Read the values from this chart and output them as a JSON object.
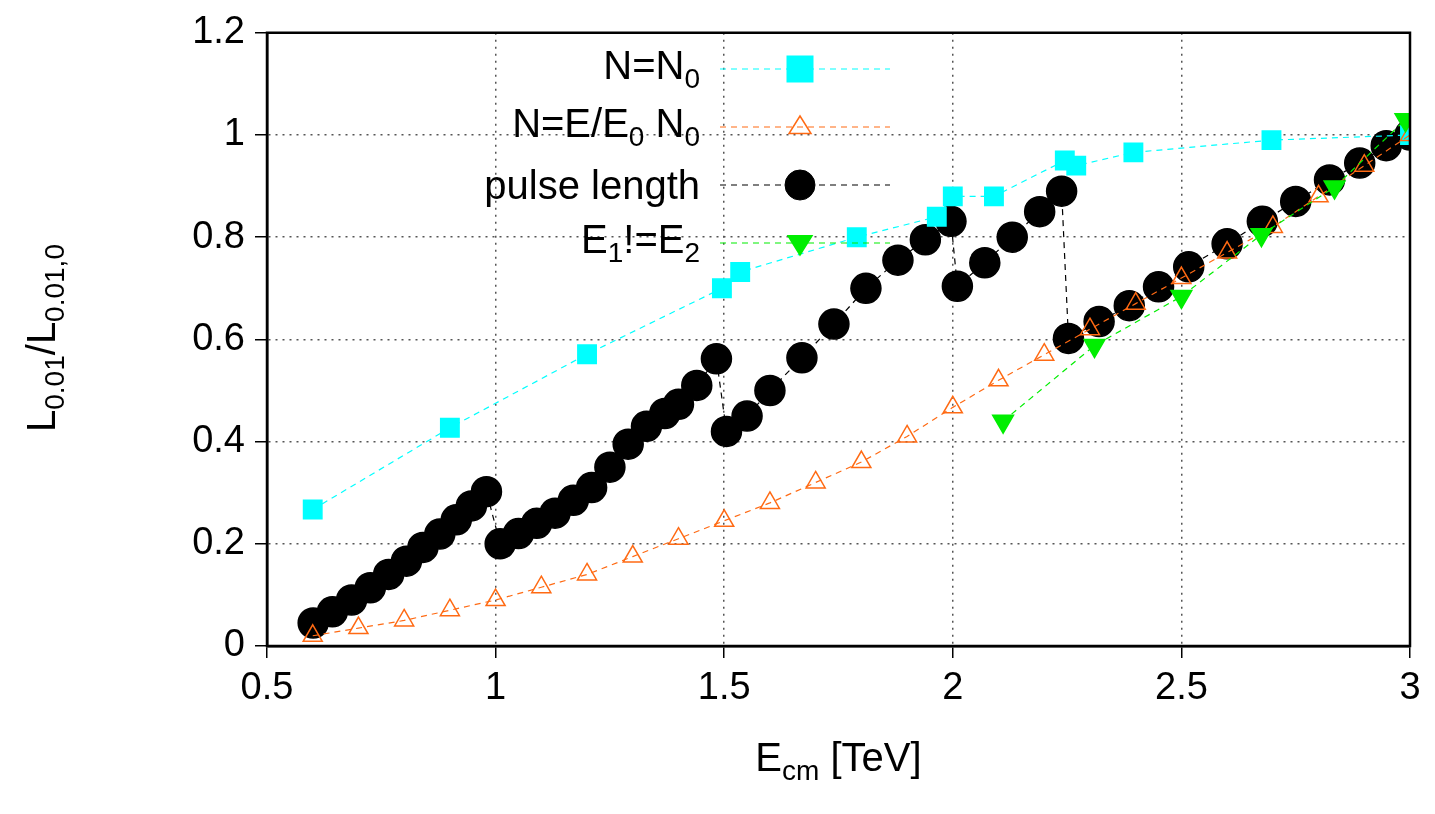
{
  "chart_data": {
    "type": "line",
    "xlabel": "E$_{cm}$ [TeV]",
    "ylabel": "L$_{0.01}$/L$_{0.01,0}$",
    "xlim": [
      0.5,
      3
    ],
    "xticks": [
      0.5,
      1,
      1.5,
      2,
      2.5,
      3
    ],
    "ylim": [
      0,
      1.2
    ],
    "yticks": [
      0,
      0.2,
      0.4,
      0.6,
      0.8,
      1,
      1.2
    ],
    "grid": true,
    "legend": "top left",
    "series": [
      {
        "name": "N=N$_{0}$",
        "color": "#00ffff",
        "marker": "square",
        "line_style": "dashed",
        "x": [
          0.6,
          0.9,
          1.2,
          1.495,
          1.535,
          1.79,
          1.965,
          2.0,
          2.09,
          2.245,
          2.27,
          2.395,
          2.697,
          3.0
        ],
        "values": [
          0.267,
          0.427,
          0.571,
          0.7,
          0.732,
          0.8,
          0.84,
          0.88,
          0.88,
          0.95,
          0.94,
          0.966,
          0.99,
          1.0
        ]
      },
      {
        "name": "N=E/E$_{0}$ N$_{0}$",
        "color": "#ff6a13",
        "marker": "triangle-open",
        "line_style": "dashed",
        "x": [
          0.6,
          0.7,
          0.8,
          0.9,
          1.0,
          1.1,
          1.2,
          1.3,
          1.4,
          1.5,
          1.6,
          1.7,
          1.8,
          1.9,
          2.0,
          2.1,
          2.2,
          2.3,
          2.4,
          2.5,
          2.6,
          2.7,
          2.8,
          2.9,
          3.0
        ],
        "values": [
          0.02,
          0.035,
          0.05,
          0.07,
          0.09,
          0.115,
          0.14,
          0.175,
          0.21,
          0.245,
          0.28,
          0.32,
          0.36,
          0.41,
          0.467,
          0.52,
          0.57,
          0.62,
          0.67,
          0.72,
          0.77,
          0.82,
          0.88,
          0.94,
          1.0
        ]
      },
      {
        "name": "pulse length",
        "color": "#000000",
        "marker": "circle",
        "line_style": "dashed",
        "x": [
          0.601,
          0.643,
          0.685,
          0.726,
          0.766,
          0.805,
          0.841,
          0.878,
          0.914,
          0.947,
          0.98,
          1.01,
          1.05,
          1.09,
          1.13,
          1.17,
          1.21,
          1.25,
          1.29,
          1.33,
          1.37,
          1.4,
          1.44,
          1.483,
          1.505,
          1.55,
          1.6,
          1.67,
          1.74,
          1.81,
          1.88,
          1.94,
          1.996,
          2.01,
          2.07,
          2.13,
          2.19,
          2.238,
          2.253,
          2.32,
          2.386,
          2.45,
          2.516,
          2.6,
          2.677,
          2.75,
          2.824,
          2.89,
          2.948,
          3.0
        ],
        "values": [
          0.045,
          0.067,
          0.09,
          0.114,
          0.14,
          0.166,
          0.193,
          0.219,
          0.247,
          0.274,
          0.302,
          0.2,
          0.22,
          0.24,
          0.26,
          0.285,
          0.31,
          0.35,
          0.395,
          0.43,
          0.455,
          0.473,
          0.51,
          0.562,
          0.42,
          0.45,
          0.5,
          0.564,
          0.63,
          0.7,
          0.755,
          0.795,
          0.831,
          0.704,
          0.75,
          0.8,
          0.85,
          0.89,
          0.602,
          0.635,
          0.666,
          0.703,
          0.742,
          0.787,
          0.831,
          0.87,
          0.912,
          0.945,
          0.979,
          1.0
        ]
      },
      {
        "name": "E$_{1}$!=E$_{2}$",
        "color": "#00ee00",
        "marker": "triangle-down",
        "line_style": "dashed",
        "x": [
          2.11,
          2.31,
          2.5,
          2.675,
          2.835,
          2.99
        ],
        "values": [
          0.44,
          0.588,
          0.684,
          0.805,
          0.898,
          1.03
        ]
      }
    ]
  }
}
